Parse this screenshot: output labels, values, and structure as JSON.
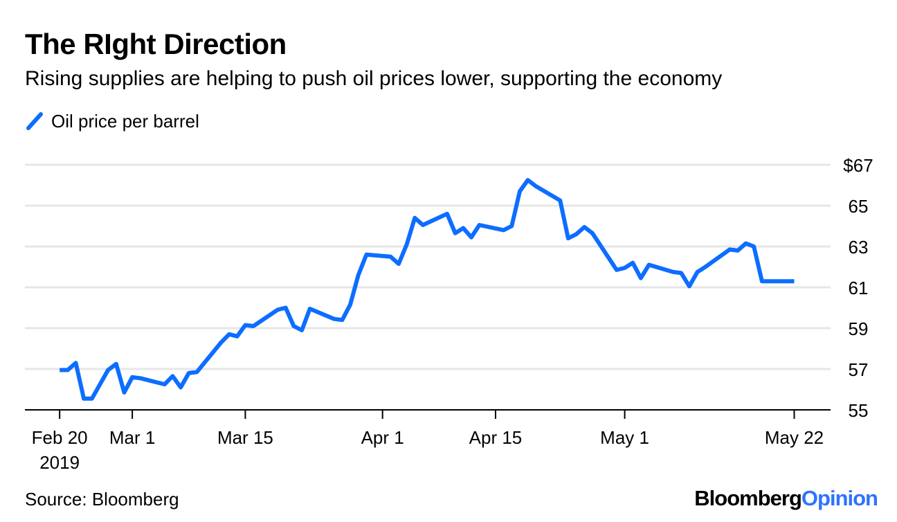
{
  "colors": {
    "line": "#0d6dff",
    "grid": "#e6e6e6",
    "axis": "#000000",
    "brand_accent": "#2e73ff"
  },
  "header": {
    "title": "The RIght Direction",
    "subtitle": "Rising supplies are helping to push oil prices lower, supporting the economy"
  },
  "legend": {
    "label": "Oil price per barrel"
  },
  "footer": {
    "source": "Source: Bloomberg",
    "brand_main": "Bloomberg",
    "brand_accent": "Opinion"
  },
  "chart_data": {
    "type": "line",
    "title": "The RIght Direction",
    "subtitle": "Rising supplies are helping to push oil prices lower, supporting the economy",
    "xlabel": "",
    "ylabel": "",
    "ylim": [
      55,
      67
    ],
    "grid": true,
    "legend_position": "top-left",
    "y_ticks": [
      {
        "value": 55,
        "label": "55"
      },
      {
        "value": 57,
        "label": "57"
      },
      {
        "value": 59,
        "label": "59"
      },
      {
        "value": 61,
        "label": "61"
      },
      {
        "value": 63,
        "label": "63"
      },
      {
        "value": 65,
        "label": "65"
      },
      {
        "value": 67,
        "label": "$67"
      }
    ],
    "x_ticks": [
      {
        "day": 0,
        "label": "Feb 20",
        "sublabel": "2019"
      },
      {
        "day": 9,
        "label": "Mar 1",
        "sublabel": ""
      },
      {
        "day": 23,
        "label": "Mar 15",
        "sublabel": ""
      },
      {
        "day": 40,
        "label": "Apr 1",
        "sublabel": ""
      },
      {
        "day": 54,
        "label": "Apr 15",
        "sublabel": ""
      },
      {
        "day": 70,
        "label": "May 1",
        "sublabel": ""
      },
      {
        "day": 91,
        "label": "May 22",
        "sublabel": ""
      }
    ],
    "x_range": [
      -4.3,
      95.5
    ],
    "series": [
      {
        "name": "Oil price per barrel",
        "days": [
          0,
          1,
          2,
          3,
          4,
          6,
          7,
          8,
          9,
          10,
          13,
          14,
          15,
          16,
          17,
          20,
          21,
          22,
          23,
          24,
          27,
          28,
          29,
          30,
          31,
          34,
          35,
          36,
          37,
          38,
          41,
          42,
          43,
          44,
          45,
          48,
          49,
          50,
          51,
          52,
          55,
          56,
          57,
          58,
          59,
          62,
          63,
          64,
          65,
          66,
          69,
          70,
          71,
          72,
          73,
          76,
          77,
          78,
          79,
          80,
          83,
          84,
          85,
          86,
          87,
          90,
          91
        ],
        "values": [
          56.95,
          56.95,
          57.3,
          55.55,
          55.55,
          56.95,
          57.25,
          55.85,
          56.6,
          56.55,
          56.25,
          56.65,
          56.1,
          56.8,
          56.85,
          58.3,
          58.7,
          58.6,
          59.15,
          59.1,
          59.9,
          60.0,
          59.1,
          58.9,
          59.95,
          59.45,
          59.4,
          60.15,
          61.6,
          62.6,
          62.5,
          62.15,
          63.1,
          64.4,
          64.05,
          64.6,
          63.65,
          63.9,
          63.45,
          64.05,
          63.8,
          64.0,
          65.7,
          66.25,
          65.95,
          65.25,
          63.4,
          63.6,
          63.95,
          63.65,
          61.85,
          61.95,
          62.2,
          61.45,
          62.1,
          61.75,
          61.7,
          61.05,
          61.75,
          62.0,
          62.85,
          62.8,
          63.15,
          63.0,
          61.3,
          61.3,
          61.3
        ]
      }
    ]
  }
}
